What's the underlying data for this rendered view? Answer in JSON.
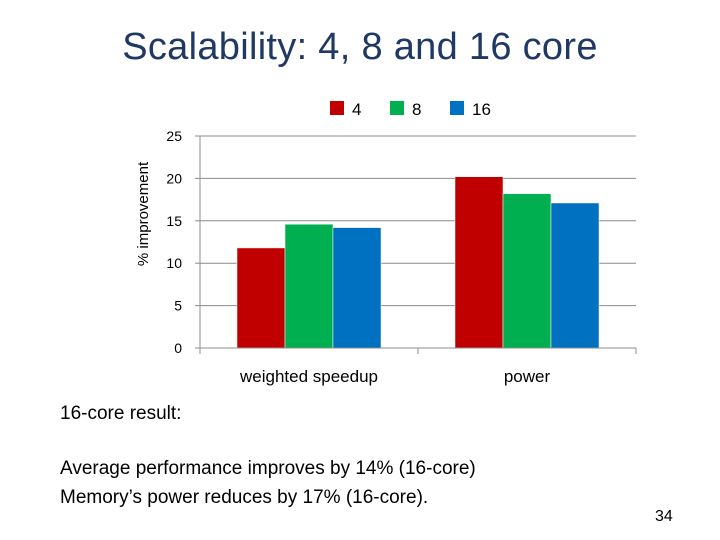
{
  "slide": {
    "title": "Scalability: 4, 8 and 16 core",
    "result_heading": "16-core result:",
    "bullets": [
      "Average performance improves by 14% (16-core)",
      "Memory’s power reduces by 17% (16-core)."
    ],
    "page_number": "34"
  },
  "chart_data": {
    "type": "bar",
    "title": "",
    "xlabel": "",
    "ylabel": "% improvement",
    "categories": [
      "weighted speedup",
      "power"
    ],
    "series": [
      {
        "name": "4",
        "values": [
          11.8,
          20.2
        ],
        "color": "#c00000"
      },
      {
        "name": "8",
        "values": [
          14.6,
          18.2
        ],
        "color": "#00b050"
      },
      {
        "name": "16",
        "values": [
          14.2,
          17.1
        ],
        "color": "#0070c0"
      }
    ],
    "ylim": [
      0,
      25
    ],
    "yticks": [
      0,
      5,
      10,
      15,
      20,
      25
    ],
    "grid": true,
    "legend_position": "top"
  }
}
